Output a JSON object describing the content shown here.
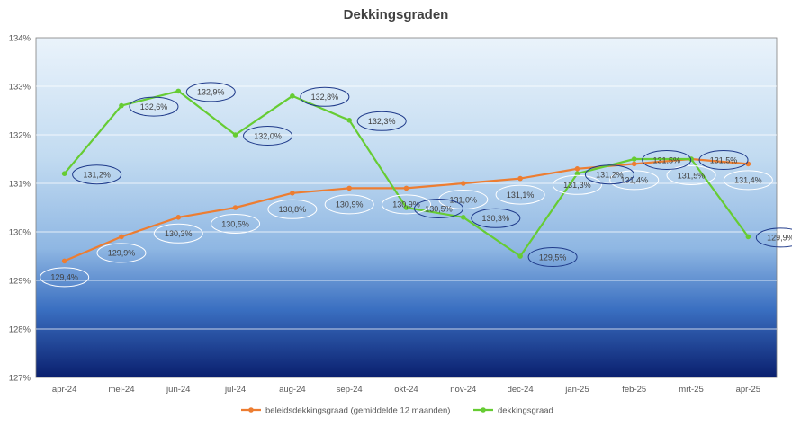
{
  "chart_data": {
    "type": "line",
    "title": "Dekkingsgraden",
    "categories": [
      "apr-24",
      "mei-24",
      "jun-24",
      "jul-24",
      "aug-24",
      "sep-24",
      "okt-24",
      "nov-24",
      "dec-24",
      "jan-25",
      "feb-25",
      "mrt-25",
      "apr-25"
    ],
    "y_ticks": [
      "127%",
      "128%",
      "129%",
      "130%",
      "131%",
      "132%",
      "133%",
      "134%"
    ],
    "ylim": [
      127,
      134
    ],
    "grid": true,
    "legend_position": "bottom",
    "series": [
      {
        "name": "beleidsdekkingsgraad (gemiddelde 12 maanden)",
        "color": "#ED7D31",
        "values": [
          129.4,
          129.9,
          130.3,
          130.5,
          130.8,
          130.9,
          130.9,
          131.0,
          131.1,
          131.3,
          131.4,
          131.5,
          131.4
        ],
        "labels": [
          "129,4%",
          "129,9%",
          "130,3%",
          "130,5%",
          "130,8%",
          "130,9%",
          "130,9%",
          "131,0%",
          "131,1%",
          "131,3%",
          "131,4%",
          "131,5%",
          "131,4%"
        ]
      },
      {
        "name": "dekkingsgraad",
        "color": "#66CC33",
        "values": [
          131.2,
          132.6,
          132.9,
          132.0,
          132.8,
          132.3,
          130.5,
          130.3,
          129.5,
          131.2,
          131.5,
          131.5,
          129.9
        ],
        "labels": [
          "131,2%",
          "132,6%",
          "132,9%",
          "132,0%",
          "132,8%",
          "132,3%",
          "130,5%",
          "130,3%",
          "129,5%",
          "131,2%",
          "131,5%",
          "131,5%",
          "129,9%"
        ]
      }
    ]
  }
}
